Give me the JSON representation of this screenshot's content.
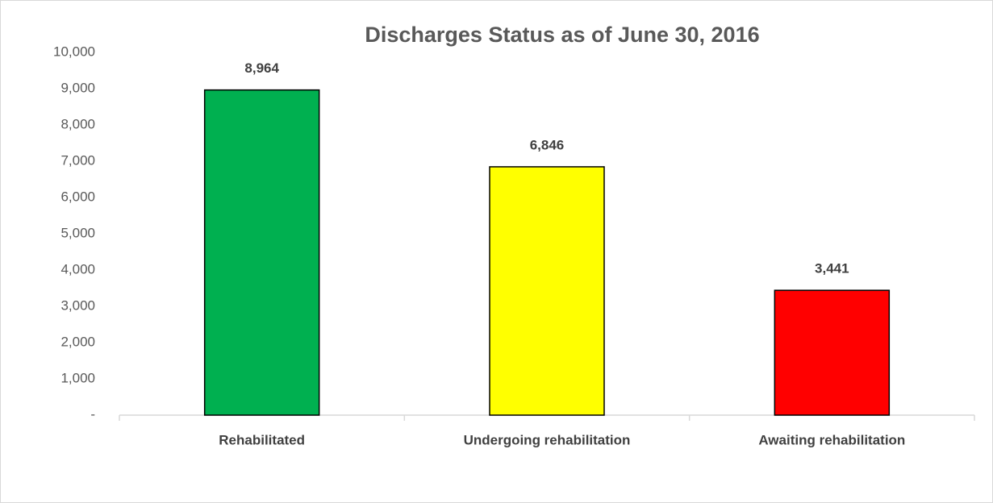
{
  "chart_data": {
    "type": "bar",
    "title": "Discharges Status as of  June 30, 2016",
    "categories": [
      "Rehabilitated",
      "Undergoing rehabilitation",
      "Awaiting rehabilitation"
    ],
    "values": [
      8964,
      6846,
      3441
    ],
    "value_labels": [
      "8,964",
      "6,846",
      "3,441"
    ],
    "colors": [
      "#00b050",
      "#ffff00",
      "#ff0000"
    ],
    "ylim": [
      0,
      10000
    ],
    "yticks": [
      {
        "value": 0,
        "label": "-"
      },
      {
        "value": 1000,
        "label": "1,000"
      },
      {
        "value": 2000,
        "label": "2,000"
      },
      {
        "value": 3000,
        "label": "3,000"
      },
      {
        "value": 4000,
        "label": "4,000"
      },
      {
        "value": 5000,
        "label": "5,000"
      },
      {
        "value": 6000,
        "label": "6,000"
      },
      {
        "value": 7000,
        "label": "7,000"
      },
      {
        "value": 8000,
        "label": "8,000"
      },
      {
        "value": 9000,
        "label": "9,000"
      },
      {
        "value": 10000,
        "label": "10,000"
      }
    ],
    "grid": false
  }
}
